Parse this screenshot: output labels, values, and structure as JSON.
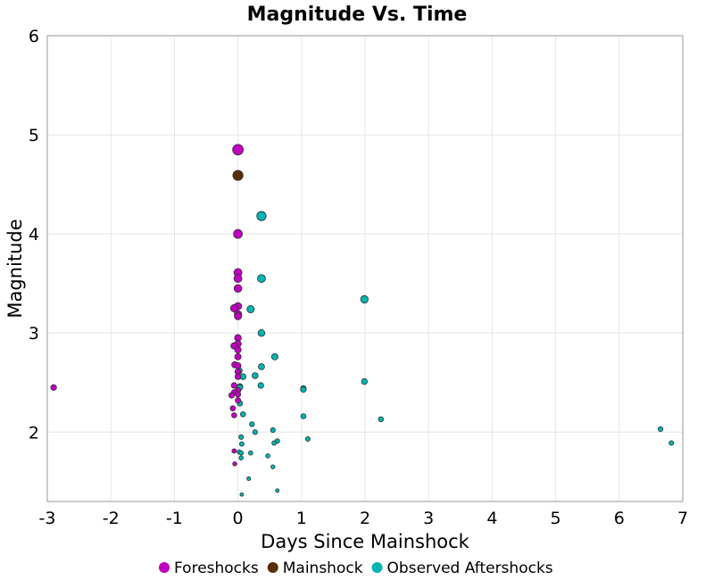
{
  "chart_data": {
    "type": "scatter",
    "title": "Magnitude Vs. Time",
    "xlabel": "Days Since Mainshock",
    "ylabel": "Magnitude",
    "xlim": [
      -3,
      7
    ],
    "ylim": [
      1.3,
      6
    ],
    "xticks": [
      -3,
      -2,
      -1,
      0,
      1,
      2,
      3,
      4,
      5,
      6,
      7
    ],
    "yticks": [
      2,
      3,
      4,
      5,
      6
    ],
    "grid": true,
    "legend_position": "bottom",
    "series": [
      {
        "name": "Foreshocks",
        "color": "#c000c0",
        "points": [
          [
            -2.9,
            2.45
          ],
          [
            0,
            4.85
          ],
          [
            0,
            4.0
          ],
          [
            0,
            3.61
          ],
          [
            0,
            3.55
          ],
          [
            0,
            3.45
          ],
          [
            0,
            3.27
          ],
          [
            -0.06,
            3.25
          ],
          [
            0,
            3.19
          ],
          [
            0,
            3.17
          ],
          [
            0,
            2.95
          ],
          [
            0,
            2.89
          ],
          [
            -0.06,
            2.87
          ],
          [
            0,
            2.83
          ],
          [
            0,
            2.76
          ],
          [
            -0.05,
            2.68
          ],
          [
            0,
            2.67
          ],
          [
            0,
            2.61
          ],
          [
            0,
            2.56
          ],
          [
            -0.06,
            2.47
          ],
          [
            0,
            2.42
          ],
          [
            -0.06,
            2.4
          ],
          [
            -0.1,
            2.37
          ],
          [
            0,
            2.38
          ],
          [
            0,
            2.32
          ],
          [
            -0.08,
            2.24
          ],
          [
            -0.06,
            2.17
          ],
          [
            -0.06,
            1.81
          ],
          [
            -0.05,
            1.68
          ]
        ]
      },
      {
        "name": "Mainshock",
        "color": "#5a2d00",
        "points": [
          [
            0,
            4.59
          ]
        ]
      },
      {
        "name": "Observed Aftershocks",
        "color": "#00b4b4",
        "points": [
          [
            0.37,
            4.18
          ],
          [
            0.37,
            3.55
          ],
          [
            1.99,
            3.34
          ],
          [
            0.2,
            3.24
          ],
          [
            0.37,
            3.0
          ],
          [
            0.58,
            2.76
          ],
          [
            0.37,
            2.66
          ],
          [
            0.02,
            2.62
          ],
          [
            0.08,
            2.56
          ],
          [
            0.27,
            2.57
          ],
          [
            1.99,
            2.51
          ],
          [
            0.36,
            2.47
          ],
          [
            0.03,
            2.46
          ],
          [
            0.03,
            2.45
          ],
          [
            1.03,
            2.44
          ],
          [
            1.03,
            2.43
          ],
          [
            0.03,
            2.29
          ],
          [
            0.08,
            2.18
          ],
          [
            1.03,
            2.16
          ],
          [
            2.25,
            2.13
          ],
          [
            0.22,
            2.08
          ],
          [
            6.65,
            2.03
          ],
          [
            0.55,
            2.02
          ],
          [
            0.27,
            2.0
          ],
          [
            0.05,
            1.95
          ],
          [
            1.1,
            1.93
          ],
          [
            0.62,
            1.91
          ],
          [
            0.57,
            1.89
          ],
          [
            6.82,
            1.89
          ],
          [
            0.06,
            1.88
          ],
          [
            0.02,
            1.8
          ],
          [
            0.05,
            1.79
          ],
          [
            0.2,
            1.79
          ],
          [
            0.47,
            1.76
          ],
          [
            0.05,
            1.74
          ],
          [
            0.55,
            1.65
          ],
          [
            0.17,
            1.53
          ],
          [
            0.62,
            1.41
          ],
          [
            0.06,
            1.37
          ]
        ]
      }
    ]
  }
}
